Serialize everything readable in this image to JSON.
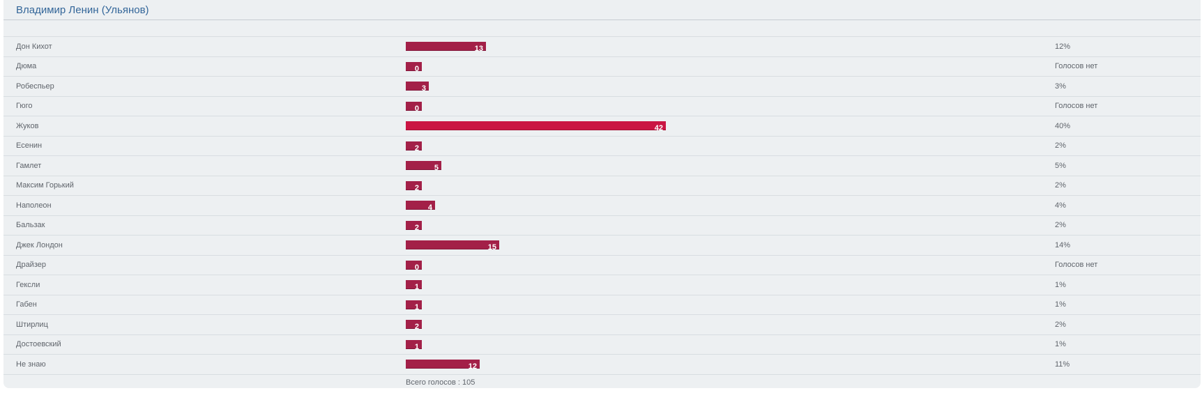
{
  "poll": {
    "title": "Владимир Ленин (Ульянов)",
    "total_label": "Всего голосов : 105",
    "total_votes": 105,
    "no_votes_text": "Голосов нет",
    "colors": {
      "panel_bg": "#edf0f2",
      "bar": "#a32048",
      "bar_max": "#ca1543",
      "title": "#336699",
      "text": "#5f646b"
    },
    "options": [
      {
        "label": "Дон Кихот",
        "votes": "13",
        "pct": 12,
        "percent_label": "12%",
        "max": false
      },
      {
        "label": "Дюма",
        "votes": "0",
        "pct": 0,
        "percent_label": "Голосов нет",
        "max": false
      },
      {
        "label": "Робеспьер",
        "votes": "3",
        "pct": 3,
        "percent_label": "3%",
        "max": false
      },
      {
        "label": "Гюго",
        "votes": "0",
        "pct": 0,
        "percent_label": "Голосов нет",
        "max": false
      },
      {
        "label": "Жуков",
        "votes": "42",
        "pct": 40,
        "percent_label": "40%",
        "max": true
      },
      {
        "label": "Есенин",
        "votes": "2",
        "pct": 2,
        "percent_label": "2%",
        "max": false
      },
      {
        "label": "Гамлет",
        "votes": "5",
        "pct": 5,
        "percent_label": "5%",
        "max": false
      },
      {
        "label": "Максим Горький",
        "votes": "2",
        "pct": 2,
        "percent_label": "2%",
        "max": false
      },
      {
        "label": "Наполеон",
        "votes": "4",
        "pct": 4,
        "percent_label": "4%",
        "max": false
      },
      {
        "label": "Бальзак",
        "votes": "2",
        "pct": 2,
        "percent_label": "2%",
        "max": false
      },
      {
        "label": "Джек Лондон",
        "votes": "15",
        "pct": 14,
        "percent_label": "14%",
        "max": false
      },
      {
        "label": "Драйзер",
        "votes": "0",
        "pct": 0,
        "percent_label": "Голосов нет",
        "max": false
      },
      {
        "label": "Гексли",
        "votes": "1",
        "pct": 1,
        "percent_label": "1%",
        "max": false
      },
      {
        "label": "Габен",
        "votes": "1",
        "pct": 1,
        "percent_label": "1%",
        "max": false
      },
      {
        "label": "Штирлиц",
        "votes": "2",
        "pct": 2,
        "percent_label": "2%",
        "max": false
      },
      {
        "label": "Достоевский",
        "votes": "1",
        "pct": 1,
        "percent_label": "1%",
        "max": false
      },
      {
        "label": "Не знаю",
        "votes": "12",
        "pct": 11,
        "percent_label": "11%",
        "max": false
      }
    ]
  }
}
